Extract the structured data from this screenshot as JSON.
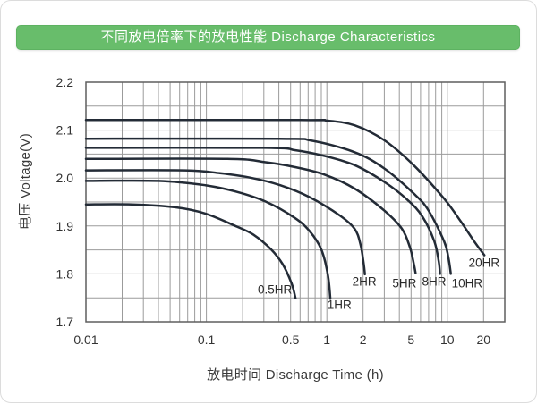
{
  "colors": {
    "accent_green": "#68bd6b",
    "curve": "#232b36",
    "grid": "#9b9b9b",
    "axis_border": "#5f5f5f",
    "text": "#3a3a3a",
    "title_text": "#ffffff"
  },
  "chart_data": {
    "type": "line",
    "title": "不同放电倍率下的放电性能 Discharge Characteristics",
    "xlabel": "放电时间  Discharge Time (h)",
    "ylabel": "电压  Voltage(V)",
    "x_scale": "log",
    "xlim": [
      0.01,
      30
    ],
    "ylim": [
      1.7,
      2.2
    ],
    "grid": true,
    "y_grid_step": 0.05,
    "x_ticks": [
      {
        "v": 0.01,
        "label": "0.01"
      },
      {
        "v": 0.1,
        "label": "0.1"
      },
      {
        "v": 0.5,
        "label": "0.5"
      },
      {
        "v": 1,
        "label": "1"
      },
      {
        "v": 2,
        "label": "2"
      },
      {
        "v": 5,
        "label": "5"
      },
      {
        "v": 10,
        "label": "10"
      },
      {
        "v": 20,
        "label": "20"
      }
    ],
    "y_ticks": [
      {
        "v": 2.2,
        "label": "2.2"
      },
      {
        "v": 2.1,
        "label": "2.1"
      },
      {
        "v": 2.0,
        "label": "2.0"
      },
      {
        "v": 1.9,
        "label": "1.9"
      },
      {
        "v": 1.8,
        "label": "1.8"
      },
      {
        "v": 1.7,
        "label": "1.7"
      }
    ],
    "series": [
      {
        "name": "20HR",
        "points": [
          [
            0.01,
            2.121
          ],
          [
            0.6,
            2.121
          ],
          [
            1.0,
            2.12
          ],
          [
            1.7,
            2.11
          ],
          [
            3.0,
            2.079
          ],
          [
            5.3,
            2.026
          ],
          [
            9.4,
            1.957
          ],
          [
            12.5,
            1.915
          ],
          [
            16.6,
            1.869
          ],
          [
            20.3,
            1.839
          ]
        ]
      },
      {
        "name": "10HR",
        "points": [
          [
            0.01,
            2.082
          ],
          [
            0.4,
            2.082
          ],
          [
            0.75,
            2.078
          ],
          [
            1.7,
            2.054
          ],
          [
            3.0,
            2.02
          ],
          [
            5.3,
            1.967
          ],
          [
            7.0,
            1.932
          ],
          [
            9.4,
            1.868
          ],
          [
            10.2,
            1.835
          ],
          [
            10.7,
            1.8
          ]
        ]
      },
      {
        "name": "8HR",
        "points": [
          [
            0.01,
            2.063
          ],
          [
            0.3,
            2.063
          ],
          [
            0.55,
            2.058
          ],
          [
            0.96,
            2.046
          ],
          [
            1.7,
            2.027
          ],
          [
            3.0,
            1.992
          ],
          [
            4.7,
            1.954
          ],
          [
            6.2,
            1.92
          ],
          [
            7.8,
            1.868
          ],
          [
            8.5,
            1.825
          ],
          [
            8.7,
            1.8
          ]
        ]
      },
      {
        "name": "5HR",
        "points": [
          [
            0.01,
            2.04
          ],
          [
            0.15,
            2.04
          ],
          [
            0.31,
            2.033
          ],
          [
            0.54,
            2.023
          ],
          [
            0.96,
            2.007
          ],
          [
            1.7,
            1.978
          ],
          [
            3.0,
            1.932
          ],
          [
            4.2,
            1.894
          ],
          [
            4.9,
            1.855
          ],
          [
            5.3,
            1.818
          ],
          [
            5.45,
            1.802
          ]
        ]
      },
      {
        "name": "2HR",
        "points": [
          [
            0.01,
            2.016
          ],
          [
            0.066,
            2.016
          ],
          [
            0.13,
            2.01
          ],
          [
            0.23,
            2.001
          ],
          [
            0.41,
            1.985
          ],
          [
            0.72,
            1.96
          ],
          [
            1.28,
            1.922
          ],
          [
            1.7,
            1.894
          ],
          [
            1.9,
            1.862
          ],
          [
            2.02,
            1.822
          ],
          [
            2.07,
            1.799
          ]
        ]
      },
      {
        "name": "1HR",
        "points": [
          [
            0.01,
            1.994
          ],
          [
            0.04,
            1.994
          ],
          [
            0.098,
            1.985
          ],
          [
            0.174,
            1.972
          ],
          [
            0.31,
            1.951
          ],
          [
            0.54,
            1.917
          ],
          [
            0.72,
            1.889
          ],
          [
            0.9,
            1.851
          ],
          [
            1.02,
            1.798
          ],
          [
            1.07,
            1.748
          ]
        ]
      },
      {
        "name": "0.5HR",
        "points": [
          [
            0.01,
            1.945
          ],
          [
            0.024,
            1.945
          ],
          [
            0.055,
            1.939
          ],
          [
            0.098,
            1.926
          ],
          [
            0.174,
            1.9
          ],
          [
            0.245,
            1.882
          ],
          [
            0.345,
            1.851
          ],
          [
            0.43,
            1.82
          ],
          [
            0.51,
            1.78
          ],
          [
            0.55,
            1.749
          ]
        ]
      }
    ],
    "curve_labels": [
      {
        "text": "0.5HR",
        "t": 0.37,
        "v": 1.767
      },
      {
        "text": "1HR",
        "t": 1.27,
        "v": 1.735
      },
      {
        "text": "2HR",
        "t": 2.05,
        "v": 1.784
      },
      {
        "text": "5HR",
        "t": 4.41,
        "v": 1.78
      },
      {
        "text": "8HR",
        "t": 7.76,
        "v": 1.784
      },
      {
        "text": "10HR",
        "t": 14.6,
        "v": 1.78
      },
      {
        "text": "20HR",
        "t": 20.2,
        "v": 1.823
      }
    ]
  }
}
